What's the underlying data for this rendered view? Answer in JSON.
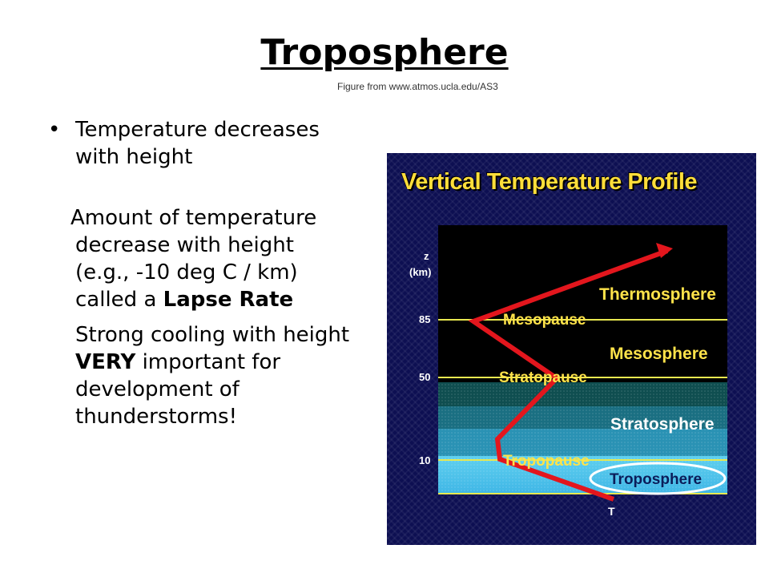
{
  "slide": {
    "title": "Troposphere",
    "credit": "Figure from www.atmos.ucla.edu/AS3"
  },
  "bullets": {
    "marker": "•",
    "first": "Temperature decreases with height",
    "para2_pre": "Amount of temperature decrease with height (e.g., -10 deg C / km) called a ",
    "para2_bold": "Lapse Rate",
    "para3_pre": "Strong cooling with height ",
    "para3_bold": "VERY",
    "para3_post": " important for development of thunderstorms!"
  },
  "figure": {
    "title": "Vertical Temperature Profile",
    "axis_z": "z",
    "axis_unit": "(km)",
    "axis_t": "T",
    "ticks": [
      "85",
      "50",
      "10"
    ],
    "layers": {
      "thermosphere": "Thermosphere",
      "mesopause": "Mesopause",
      "mesosphere": "Mesosphere",
      "stratopause": "Stratopause",
      "stratosphere": "Stratosphere",
      "tropopause": "Tropopause",
      "troposphere": "Troposphere"
    },
    "colors": {
      "background": "#0d0f52",
      "profile_line": "#e3161d",
      "title": "#ffde3a",
      "highlight_ellipse": "#ffffff"
    }
  }
}
